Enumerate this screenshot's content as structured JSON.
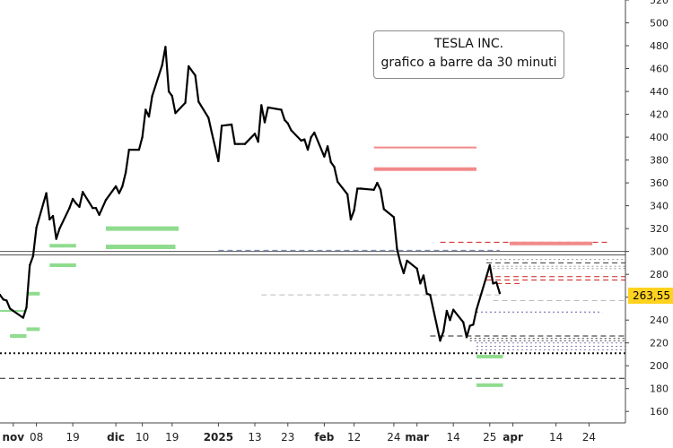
{
  "chart_data": {
    "type": "line",
    "title": "TESLA INC.",
    "subtitle": "grafico a barre da 30 minuti",
    "last_price_label": "263,55",
    "last_price": 263.55,
    "ylim": [
      150,
      520
    ],
    "y_ticks": [
      {
        "value": 160,
        "label": "160"
      },
      {
        "value": 180,
        "label": "180"
      },
      {
        "value": 200,
        "label": "200"
      },
      {
        "value": 220,
        "label": "220"
      },
      {
        "value": 240,
        "label": "240"
      },
      {
        "value": 260,
        "label": "260"
      },
      {
        "value": 280,
        "label": "280"
      },
      {
        "value": 300,
        "label": "300"
      },
      {
        "value": 320,
        "label": "320"
      },
      {
        "value": 340,
        "label": "340"
      },
      {
        "value": 360,
        "label": "360"
      },
      {
        "value": 380,
        "label": "380"
      },
      {
        "value": 400,
        "label": "400"
      },
      {
        "value": 420,
        "label": "420"
      },
      {
        "value": 440,
        "label": "440"
      },
      {
        "value": 460,
        "label": "460"
      },
      {
        "value": 480,
        "label": "480"
      },
      {
        "value": 500,
        "label": "500"
      },
      {
        "value": 520,
        "label": "520"
      }
    ],
    "x_ticks": [
      {
        "date": "2024-11-01",
        "label": "nov",
        "month": true
      },
      {
        "date": "2024-11-08",
        "label": "08",
        "month": false
      },
      {
        "date": "2024-11-19",
        "label": "19",
        "month": false
      },
      {
        "date": "2024-12-02",
        "label": "dic",
        "month": true
      },
      {
        "date": "2024-12-10",
        "label": "10",
        "month": false
      },
      {
        "date": "2024-12-19",
        "label": "19",
        "month": false
      },
      {
        "date": "2025-01-02",
        "label": "2025",
        "month": true
      },
      {
        "date": "2025-01-13",
        "label": "13",
        "month": false
      },
      {
        "date": "2025-01-23",
        "label": "23",
        "month": false
      },
      {
        "date": "2025-02-03",
        "label": "feb",
        "month": true
      },
      {
        "date": "2025-02-12",
        "label": "12",
        "month": false
      },
      {
        "date": "2025-02-24",
        "label": "24",
        "month": false
      },
      {
        "date": "2025-03-03",
        "label": "mar",
        "month": true
      },
      {
        "date": "2025-03-14",
        "label": "14",
        "month": false
      },
      {
        "date": "2025-03-25",
        "label": "25",
        "month": false
      },
      {
        "date": "2025-04-01",
        "label": "apr",
        "month": true
      },
      {
        "date": "2025-04-14",
        "label": "14",
        "month": false
      },
      {
        "date": "2025-04-24",
        "label": "24",
        "month": false
      }
    ],
    "x_start": "2024-10-28",
    "x_end": "2025-05-05",
    "series": [
      {
        "color": "#000000",
        "points": [
          [
            "2024-10-28",
            262
          ],
          [
            "2024-10-29",
            258
          ],
          [
            "2024-10-30",
            257
          ],
          [
            "2024-10-31",
            250
          ],
          [
            "2024-11-01",
            248
          ],
          [
            "2024-11-04",
            242
          ],
          [
            "2024-11-05",
            251
          ],
          [
            "2024-11-06",
            288
          ],
          [
            "2024-11-07",
            296
          ],
          [
            "2024-11-08",
            321
          ],
          [
            "2024-11-11",
            351
          ],
          [
            "2024-11-12",
            328
          ],
          [
            "2024-11-13",
            331
          ],
          [
            "2024-11-14",
            311
          ],
          [
            "2024-11-15",
            320
          ],
          [
            "2024-11-18",
            338
          ],
          [
            "2024-11-19",
            346
          ],
          [
            "2024-11-20",
            342
          ],
          [
            "2024-11-21",
            339
          ],
          [
            "2024-11-22",
            352
          ],
          [
            "2024-11-25",
            338
          ],
          [
            "2024-11-26",
            338
          ],
          [
            "2024-11-27",
            332
          ],
          [
            "2024-11-29",
            345
          ],
          [
            "2024-12-02",
            357
          ],
          [
            "2024-12-03",
            351
          ],
          [
            "2024-12-04",
            357
          ],
          [
            "2024-12-05",
            369
          ],
          [
            "2024-12-06",
            389
          ],
          [
            "2024-12-09",
            389
          ],
          [
            "2024-12-10",
            400
          ],
          [
            "2024-12-11",
            424
          ],
          [
            "2024-12-12",
            418
          ],
          [
            "2024-12-13",
            436
          ],
          [
            "2024-12-16",
            463
          ],
          [
            "2024-12-17",
            479
          ],
          [
            "2024-12-18",
            440
          ],
          [
            "2024-12-19",
            436
          ],
          [
            "2024-12-20",
            421
          ],
          [
            "2024-12-23",
            430
          ],
          [
            "2024-12-24",
            462
          ],
          [
            "2024-12-26",
            454
          ],
          [
            "2024-12-27",
            431
          ],
          [
            "2024-12-30",
            417
          ],
          [
            "2024-12-31",
            404
          ],
          [
            "2025-01-02",
            379
          ],
          [
            "2025-01-03",
            410
          ],
          [
            "2025-01-06",
            411
          ],
          [
            "2025-01-07",
            394
          ],
          [
            "2025-01-08",
            394
          ],
          [
            "2025-01-10",
            394
          ],
          [
            "2025-01-13",
            403
          ],
          [
            "2025-01-14",
            396
          ],
          [
            "2025-01-15",
            428
          ],
          [
            "2025-01-16",
            413
          ],
          [
            "2025-01-17",
            426
          ],
          [
            "2025-01-21",
            424
          ],
          [
            "2025-01-22",
            415
          ],
          [
            "2025-01-23",
            412
          ],
          [
            "2025-01-24",
            406
          ],
          [
            "2025-01-27",
            397
          ],
          [
            "2025-01-28",
            398
          ],
          [
            "2025-01-29",
            389
          ],
          [
            "2025-01-30",
            400
          ],
          [
            "2025-01-31",
            404
          ],
          [
            "2025-02-03",
            383
          ],
          [
            "2025-02-04",
            392
          ],
          [
            "2025-02-05",
            378
          ],
          [
            "2025-02-06",
            374
          ],
          [
            "2025-02-07",
            361
          ],
          [
            "2025-02-10",
            350
          ],
          [
            "2025-02-11",
            328
          ],
          [
            "2025-02-12",
            336
          ],
          [
            "2025-02-13",
            355
          ],
          [
            "2025-02-14",
            355
          ],
          [
            "2025-02-18",
            354
          ],
          [
            "2025-02-19",
            360
          ],
          [
            "2025-02-20",
            354
          ],
          [
            "2025-02-21",
            337
          ],
          [
            "2025-02-24",
            330
          ],
          [
            "2025-02-25",
            302
          ],
          [
            "2025-02-26",
            290
          ],
          [
            "2025-02-27",
            281
          ],
          [
            "2025-02-28",
            292
          ],
          [
            "2025-03-03",
            285
          ],
          [
            "2025-03-04",
            272
          ],
          [
            "2025-03-05",
            279
          ],
          [
            "2025-03-06",
            263
          ],
          [
            "2025-03-07",
            262
          ],
          [
            "2025-03-10",
            222
          ],
          [
            "2025-03-11",
            230
          ],
          [
            "2025-03-12",
            248
          ],
          [
            "2025-03-13",
            240
          ],
          [
            "2025-03-14",
            249
          ],
          [
            "2025-03-17",
            238
          ],
          [
            "2025-03-18",
            225
          ],
          [
            "2025-03-19",
            235
          ],
          [
            "2025-03-20",
            236
          ],
          [
            "2025-03-21",
            249
          ],
          [
            "2025-03-24",
            278
          ],
          [
            "2025-03-25",
            288
          ],
          [
            "2025-03-26",
            272
          ],
          [
            "2025-03-27",
            273
          ],
          [
            "2025-03-28",
            263.55
          ]
        ]
      }
    ],
    "annotations": [
      {
        "kind": "segment",
        "y": 300,
        "x0": "2024-10-28",
        "x1": "2025-05-05",
        "color": "#555555",
        "style": "solid",
        "width": 1
      },
      {
        "kind": "segment",
        "y": 297,
        "x0": "2024-10-28",
        "x1": "2025-05-05",
        "color": "#555555",
        "style": "solid",
        "width": 1
      },
      {
        "kind": "segment",
        "y": 301,
        "x0": "2025-01-02",
        "x1": "2025-03-28",
        "color": "#6a7fb0",
        "style": "dashed",
        "width": 1
      },
      {
        "kind": "segment",
        "y": 391,
        "x0": "2025-02-18",
        "x1": "2025-03-21",
        "color": "#f28a8a",
        "style": "solid",
        "width": 2
      },
      {
        "kind": "segment",
        "y": 372,
        "x0": "2025-02-18",
        "x1": "2025-03-21",
        "color": "#f28a8a",
        "style": "solid",
        "width": 4
      },
      {
        "kind": "segment",
        "y": 308,
        "x0": "2025-03-10",
        "x1": "2025-04-30",
        "color": "#cc2222",
        "style": "dashed",
        "width": 1
      },
      {
        "kind": "segment",
        "y": 307,
        "x0": "2025-03-31",
        "x1": "2025-04-25",
        "color": "#f28a8a",
        "style": "solid",
        "width": 4
      },
      {
        "kind": "segment",
        "y": 293,
        "x0": "2025-03-24",
        "x1": "2025-05-05",
        "color": "#999999",
        "style": "dotted",
        "width": 1
      },
      {
        "kind": "segment",
        "y": 290,
        "x0": "2025-03-24",
        "x1": "2025-05-05",
        "color": "#333333",
        "style": "dashed",
        "width": 1
      },
      {
        "kind": "segment",
        "y": 287,
        "x0": "2025-03-26",
        "x1": "2025-05-05",
        "color": "#999999",
        "style": "dotted",
        "width": 1
      },
      {
        "kind": "segment",
        "y": 285,
        "x0": "2025-03-26",
        "x1": "2025-05-05",
        "color": "#999999",
        "style": "dotted",
        "width": 1
      },
      {
        "kind": "segment",
        "y": 278,
        "x0": "2025-03-24",
        "x1": "2025-05-05",
        "color": "#cc2222",
        "style": "dashed",
        "width": 1
      },
      {
        "kind": "segment",
        "y": 275,
        "x0": "2025-03-24",
        "x1": "2025-05-05",
        "color": "#cc2222",
        "style": "dashed",
        "width": 1
      },
      {
        "kind": "segment",
        "y": 272,
        "x0": "2025-03-27",
        "x1": "2025-04-03",
        "color": "#cc2222",
        "style": "dashed",
        "width": 1
      },
      {
        "kind": "segment",
        "y": 262,
        "x0": "2025-01-15",
        "x1": "2025-03-28",
        "color": "#bbbbbb",
        "style": "dashed",
        "width": 1
      },
      {
        "kind": "segment",
        "y": 257,
        "x0": "2025-03-26",
        "x1": "2025-05-05",
        "color": "#bbbbbb",
        "style": "dashed",
        "width": 1
      },
      {
        "kind": "segment",
        "y": 247,
        "x0": "2025-03-21",
        "x1": "2025-04-28",
        "color": "#6f5aa0",
        "style": "dotted",
        "width": 1
      },
      {
        "kind": "segment",
        "y": 226,
        "x0": "2025-03-07",
        "x1": "2025-05-05",
        "color": "#222222",
        "style": "dashed",
        "width": 1
      },
      {
        "kind": "segment",
        "y": 224,
        "x0": "2025-03-19",
        "x1": "2025-05-05",
        "color": "#444444",
        "style": "dotted",
        "width": 1
      },
      {
        "kind": "segment",
        "y": 222,
        "x0": "2025-03-19",
        "x1": "2025-05-05",
        "color": "#444444",
        "style": "dotted",
        "width": 1
      },
      {
        "kind": "segment",
        "y": 220,
        "x0": "2025-03-21",
        "x1": "2025-05-05",
        "color": "#8a7bb8",
        "style": "dotted",
        "width": 1
      },
      {
        "kind": "segment",
        "y": 217,
        "x0": "2025-03-21",
        "x1": "2025-05-05",
        "color": "#8a7bb8",
        "style": "dotted",
        "width": 1
      },
      {
        "kind": "segment",
        "y": 214,
        "x0": "2025-03-21",
        "x1": "2025-05-05",
        "color": "#8a7bb8",
        "style": "dotted",
        "width": 1
      },
      {
        "kind": "segment",
        "y": 211,
        "x0": "2024-10-28",
        "x1": "2025-05-05",
        "color": "#111111",
        "style": "dotted",
        "width": 2
      },
      {
        "kind": "segment",
        "y": 189,
        "x0": "2024-10-28",
        "x1": "2025-05-05",
        "color": "#222222",
        "style": "dashed",
        "width": 1
      },
      {
        "kind": "segment",
        "y": 248,
        "x0": "2024-10-28",
        "x1": "2024-11-05",
        "color": "#8fdc8f",
        "style": "solid",
        "width": 2
      },
      {
        "kind": "segment",
        "y": 226,
        "x0": "2024-10-31",
        "x1": "2024-11-05",
        "color": "#8fdc8f",
        "style": "solid",
        "width": 4
      },
      {
        "kind": "segment",
        "y": 263,
        "x0": "2024-11-05",
        "x1": "2024-11-09",
        "color": "#8fdc8f",
        "style": "solid",
        "width": 4
      },
      {
        "kind": "segment",
        "y": 232,
        "x0": "2024-11-05",
        "x1": "2024-11-09",
        "color": "#8fdc8f",
        "style": "solid",
        "width": 4
      },
      {
        "kind": "segment",
        "y": 305,
        "x0": "2024-11-12",
        "x1": "2024-11-20",
        "color": "#8fdc8f",
        "style": "solid",
        "width": 4
      },
      {
        "kind": "segment",
        "y": 288,
        "x0": "2024-11-12",
        "x1": "2024-11-20",
        "color": "#8fdc8f",
        "style": "solid",
        "width": 4
      },
      {
        "kind": "segment",
        "y": 320,
        "x0": "2024-11-29",
        "x1": "2024-12-21",
        "color": "#8fdc8f",
        "style": "solid",
        "width": 5
      },
      {
        "kind": "segment",
        "y": 304,
        "x0": "2024-11-29",
        "x1": "2024-12-20",
        "color": "#8fdc8f",
        "style": "solid",
        "width": 5
      },
      {
        "kind": "segment",
        "y": 208,
        "x0": "2025-03-21",
        "x1": "2025-03-29",
        "color": "#8fdc8f",
        "style": "solid",
        "width": 4
      },
      {
        "kind": "segment",
        "y": 183,
        "x0": "2025-03-21",
        "x1": "2025-03-29",
        "color": "#8fdc8f",
        "style": "solid",
        "width": 4
      }
    ]
  }
}
